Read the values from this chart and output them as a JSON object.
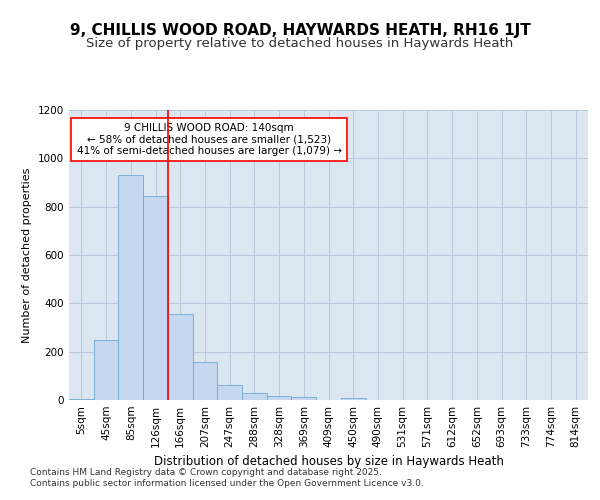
{
  "title": "9, CHILLIS WOOD ROAD, HAYWARDS HEATH, RH16 1JT",
  "subtitle": "Size of property relative to detached houses in Haywards Heath",
  "xlabel": "Distribution of detached houses by size in Haywards Heath",
  "ylabel": "Number of detached properties",
  "categories": [
    "5sqm",
    "45sqm",
    "85sqm",
    "126sqm",
    "166sqm",
    "207sqm",
    "247sqm",
    "288sqm",
    "328sqm",
    "369sqm",
    "409sqm",
    "450sqm",
    "490sqm",
    "531sqm",
    "571sqm",
    "612sqm",
    "652sqm",
    "693sqm",
    "733sqm",
    "774sqm",
    "814sqm"
  ],
  "bar_heights": [
    5,
    247,
    930,
    845,
    357,
    157,
    63,
    30,
    15,
    12,
    0,
    8,
    0,
    0,
    0,
    0,
    0,
    0,
    0,
    0,
    0
  ],
  "bar_color": "#c5d8f0",
  "bar_edge_color": "#6aaad4",
  "grid_color": "#b8c8dc",
  "background_color": "#dce6f0",
  "vline_color": "red",
  "annotation_text": "9 CHILLIS WOOD ROAD: 140sqm\n← 58% of detached houses are smaller (1,523)\n41% of semi-detached houses are larger (1,079) →",
  "annotation_box_color": "#ffffff",
  "annotation_box_edge": "red",
  "ylim": [
    0,
    1200
  ],
  "yticks": [
    0,
    200,
    400,
    600,
    800,
    1000,
    1200
  ],
  "footer": "Contains HM Land Registry data © Crown copyright and database right 2025.\nContains public sector information licensed under the Open Government Licence v3.0.",
  "title_fontsize": 11,
  "subtitle_fontsize": 9.5,
  "xlabel_fontsize": 8.5,
  "ylabel_fontsize": 8,
  "tick_fontsize": 7.5,
  "annotation_fontsize": 7.5,
  "footer_fontsize": 6.5
}
